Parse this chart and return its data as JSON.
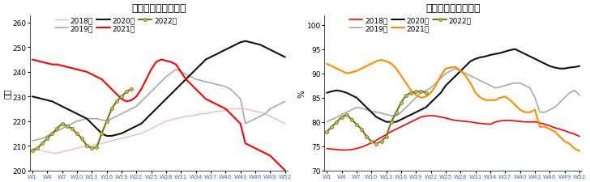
{
  "chart1": {
    "title": "日均铁水产量季节性",
    "ylabel": "万吨",
    "ylim": [
      200,
      263
    ],
    "yticks": [
      200,
      210,
      220,
      230,
      240,
      250,
      260
    ],
    "series": {
      "2018年": {
        "color": "#f4b8c1",
        "lw": 1.0,
        "zorder": 2,
        "data": [
          209,
          208.5,
          208,
          207.5,
          207,
          207,
          207.5,
          208,
          208.5,
          209,
          209.5,
          210,
          210,
          210.5,
          211,
          211.5,
          212,
          212.5,
          213,
          213.5,
          214,
          214.5,
          215,
          216,
          217,
          218,
          219,
          220,
          220.5,
          221,
          221.5,
          222,
          222,
          222.5,
          223,
          223,
          223.5,
          224,
          224,
          224.5,
          225,
          225,
          225,
          225,
          224.5,
          224,
          223.5,
          223,
          222,
          221,
          220,
          219
        ]
      },
      "2019年": {
        "color": "#aaaaaa",
        "lw": 1.2,
        "zorder": 2,
        "data": [
          212,
          212.5,
          213,
          214,
          215,
          216,
          217,
          218,
          219,
          220,
          220.5,
          221,
          221,
          221,
          220.5,
          220,
          221,
          222,
          223,
          224,
          225,
          226,
          228,
          230,
          232,
          234,
          236,
          238,
          239.5,
          241,
          240,
          239,
          238,
          237,
          236.5,
          236,
          235.5,
          235,
          234.5,
          234,
          233,
          231,
          229,
          219,
          220,
          221,
          222,
          223,
          225,
          226,
          227,
          228
        ]
      },
      "2020年": {
        "color": "#111111",
        "lw": 1.5,
        "zorder": 3,
        "data": [
          230,
          229.5,
          229,
          228.5,
          228,
          227,
          226,
          225,
          224,
          223,
          222,
          221,
          219,
          217,
          215,
          214,
          214,
          214.5,
          215,
          216,
          217,
          218,
          219,
          221,
          223,
          225,
          227,
          229,
          231,
          233,
          235,
          237,
          239,
          241,
          243,
          245,
          246,
          247,
          248,
          249,
          250,
          251,
          252,
          252.5,
          252,
          251.5,
          251,
          250,
          249,
          248,
          247,
          246
        ]
      },
      "2021年": {
        "color": "#ff0000",
        "lw": 1.5,
        "zorder": 3,
        "data": [
          245,
          244.5,
          244,
          243.5,
          243,
          243,
          242.5,
          242,
          241.5,
          241,
          240.5,
          240,
          239,
          238,
          237,
          235,
          233,
          231,
          229,
          228,
          228.5,
          230,
          233,
          237,
          241,
          244,
          245,
          244.5,
          244,
          243,
          240,
          237,
          235,
          233,
          231,
          229,
          228,
          227,
          226,
          225,
          223,
          221,
          219,
          211,
          210,
          209,
          208,
          207,
          206,
          204,
          202,
          200
        ]
      },
      "2022年": {
        "color": "#6b7a1a",
        "lw": 1.5,
        "marker": "o",
        "markersize": 3,
        "zorder": 4,
        "data": [
          208,
          209,
          211,
          213,
          215,
          217,
          219,
          218,
          217,
          215,
          213,
          210,
          209,
          209.5,
          215,
          220,
          225,
          228,
          230,
          232,
          233,
          null,
          null,
          null,
          null,
          null,
          null,
          null,
          null,
          null,
          null,
          null,
          null,
          null,
          null,
          null,
          null,
          null,
          null,
          null,
          null,
          null,
          null,
          null,
          null,
          null,
          null,
          null,
          null,
          null,
          null,
          null
        ]
      }
    }
  },
  "chart2": {
    "title": "全国高炉产能利用率",
    "ylabel": "%",
    "ylim": [
      70,
      102
    ],
    "yticks": [
      70,
      75,
      80,
      85,
      90,
      95,
      100
    ],
    "series": {
      "2018年": {
        "color": "#ff0000",
        "lw": 1.2,
        "zorder": 2,
        "data": [
          74.5,
          74.4,
          74.3,
          74.2,
          74.2,
          74.3,
          74.5,
          74.8,
          75.2,
          75.7,
          76.2,
          76.8,
          77.4,
          78,
          78.5,
          79,
          79.5,
          80,
          80.5,
          81,
          81.2,
          81.3,
          81.2,
          81.0,
          80.8,
          80.5,
          80.3,
          80.2,
          80.1,
          80,
          79.8,
          79.7,
          79.6,
          79.5,
          80,
          80.2,
          80.3,
          80.3,
          80.2,
          80.1,
          80,
          80,
          80,
          79.8,
          79.5,
          79.2,
          78.8,
          78.5,
          78.2,
          77.8,
          77.5,
          77
        ]
      },
      "2019年": {
        "color": "#aaaaaa",
        "lw": 1.2,
        "zorder": 2,
        "data": [
          80,
          80.5,
          81,
          81.5,
          82,
          82.5,
          83,
          82.8,
          82.5,
          82.2,
          82,
          81.8,
          81.5,
          81.3,
          81.2,
          82,
          83,
          84,
          85,
          86,
          86.5,
          87,
          88,
          89,
          90,
          90.5,
          91,
          90.5,
          90,
          89.5,
          89,
          88.5,
          88,
          87.5,
          87,
          87.2,
          87.5,
          87.8,
          88,
          88,
          87.5,
          87,
          85,
          82,
          82,
          82.5,
          83,
          84,
          85,
          86,
          86.5,
          85.5
        ]
      },
      "2020年": {
        "color": "#111111",
        "lw": 1.5,
        "zorder": 3,
        "data": [
          86,
          86.3,
          86.5,
          86.3,
          86,
          85.5,
          85,
          84,
          83,
          82,
          81,
          80.5,
          80,
          80,
          80,
          80.5,
          81,
          81.5,
          82,
          82.5,
          83,
          84,
          85,
          86,
          87.5,
          88.5,
          89.5,
          90.5,
          91.5,
          92.5,
          93,
          93.3,
          93.5,
          93.8,
          94,
          94.2,
          94.5,
          94.8,
          95,
          94.5,
          94,
          93.5,
          93,
          92.5,
          92,
          91.5,
          91.2,
          91,
          91,
          91.2,
          91.3,
          91.5
        ]
      },
      "2021年": {
        "color": "#ff8c00",
        "lw": 1.5,
        "zorder": 3,
        "data": [
          92,
          91.5,
          91,
          90.5,
          90,
          90.2,
          90.5,
          91,
          91.5,
          92,
          92.5,
          92.8,
          92.5,
          92,
          91,
          89.5,
          88,
          86.5,
          85.5,
          85,
          85.2,
          86,
          87.5,
          89.5,
          91,
          91.2,
          91.3,
          90.5,
          89.5,
          88,
          86,
          85,
          84.5,
          84.5,
          84.5,
          85,
          85.2,
          84.5,
          83.5,
          82.5,
          82,
          82,
          82.5,
          79,
          79,
          78.5,
          78,
          77,
          76,
          75.5,
          74.5,
          74
        ]
      },
      "2022年": {
        "color": "#6b7a1a",
        "lw": 1.5,
        "marker": "o",
        "markersize": 3,
        "zorder": 4,
        "data": [
          78,
          79,
          80,
          81,
          81.5,
          80.5,
          79.5,
          78.5,
          77,
          76,
          75.5,
          76,
          77,
          80,
          82,
          84,
          85.5,
          86,
          86.2,
          86.3,
          86,
          null,
          null,
          null,
          null,
          null,
          null,
          null,
          null,
          null,
          null,
          null,
          null,
          null,
          null,
          null,
          null,
          null,
          null,
          null,
          null,
          null,
          null,
          null,
          null,
          null,
          null,
          null,
          null,
          null,
          null,
          null
        ]
      }
    }
  },
  "xtick_labels": [
    "W1",
    "W4",
    "W7",
    "W10",
    "W13",
    "W16",
    "W19",
    "W22",
    "W25",
    "W28",
    "W31",
    "W34",
    "W37",
    "W40",
    "W43",
    "W46",
    "W49",
    "W52"
  ],
  "xtick_indices": [
    0,
    3,
    6,
    9,
    12,
    15,
    18,
    21,
    24,
    27,
    30,
    33,
    36,
    39,
    42,
    45,
    48,
    51
  ],
  "xtick_color": "#4472c4",
  "background_color": "#ffffff",
  "legend_order": [
    "2018年",
    "2019年",
    "2020年",
    "2021年",
    "2022年"
  ]
}
